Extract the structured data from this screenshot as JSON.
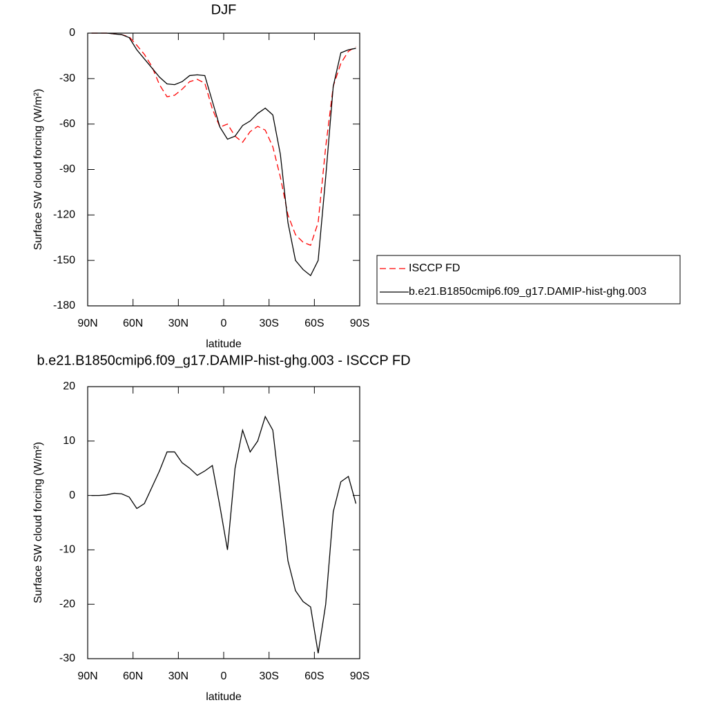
{
  "chart_data": [
    {
      "type": "line",
      "title": "DJF",
      "xlabel": "latitude",
      "ylabel": "Surface SW cloud forcing (W/m²)",
      "x": [
        87.5,
        82.5,
        77.5,
        72.5,
        67.5,
        62.5,
        57.5,
        52.5,
        47.5,
        42.5,
        37.5,
        32.5,
        27.5,
        22.5,
        17.5,
        12.5,
        7.5,
        2.5,
        -2.5,
        -7.5,
        -12.5,
        -17.5,
        -22.5,
        -27.5,
        -32.5,
        -37.5,
        -42.5,
        -47.5,
        -52.5,
        -57.5,
        -62.5,
        -67.5,
        -72.5,
        -77.5,
        -82.5,
        -87.5
      ],
      "series": [
        {
          "name": "ISCCP FD",
          "color": "#ff0000",
          "dashed": true,
          "values": [
            0,
            0,
            0,
            -0.5,
            -1,
            -2.5,
            -8,
            -14,
            -22,
            -34,
            -42,
            -41,
            -37,
            -32,
            -30.5,
            -33,
            -50,
            -62,
            -60,
            -68,
            -72,
            -65,
            -61.5,
            -64,
            -75,
            -95,
            -120,
            -133,
            -138,
            -140,
            -125,
            -75,
            -35,
            -20,
            -12,
            -9
          ]
        },
        {
          "name": "b.e21.B1850cmip6.f09_g17.DAMIP-hist-ghg.003",
          "color": "#000000",
          "dashed": false,
          "values": [
            0,
            0,
            0,
            -0.5,
            -1,
            -3,
            -11,
            -17,
            -23,
            -29,
            -33.5,
            -34,
            -32,
            -28,
            -27.5,
            -28,
            -45,
            -62,
            -70,
            -68,
            -61,
            -58,
            -53,
            -49.5,
            -54,
            -80,
            -125,
            -150,
            -156,
            -160,
            -150,
            -95,
            -35,
            -13,
            -11,
            -10
          ]
        }
      ],
      "xlim": [
        90,
        -90
      ],
      "xticks": [
        {
          "value": 90,
          "label": "90N"
        },
        {
          "value": 60,
          "label": "60N"
        },
        {
          "value": 30,
          "label": "30N"
        },
        0,
        {
          "value": -30,
          "label": "30S"
        },
        {
          "value": -60,
          "label": "60S"
        },
        {
          "value": -90,
          "label": "90S"
        }
      ],
      "ylim": [
        -180,
        0
      ],
      "yticks": [
        0,
        -30,
        -60,
        -90,
        -120,
        -150,
        -180
      ],
      "legend": "right"
    },
    {
      "type": "line",
      "title": "b.e21.B1850cmip6.f09_g17.DAMIP-hist-ghg.003 - ISCCP FD",
      "xlabel": "latitude",
      "ylabel": "Surface SW cloud forcing (W/m²)",
      "x": [
        87.5,
        82.5,
        77.5,
        72.5,
        67.5,
        62.5,
        57.5,
        52.5,
        47.5,
        42.5,
        37.5,
        32.5,
        27.5,
        22.5,
        17.5,
        12.5,
        7.5,
        2.5,
        -2.5,
        -7.5,
        -12.5,
        -17.5,
        -22.5,
        -27.5,
        -32.5,
        -37.5,
        -42.5,
        -47.5,
        -52.5,
        -57.5,
        -62.5,
        -67.5,
        -72.5,
        -77.5,
        -82.5,
        -87.5
      ],
      "series": [
        {
          "color": "#000000",
          "dashed": false,
          "values": [
            0,
            0,
            0.1,
            0.4,
            0.3,
            -0.3,
            -2.4,
            -1.5,
            1.5,
            4.5,
            8,
            8,
            6,
            5,
            3.7,
            4.5,
            5.5,
            -2,
            -10,
            5,
            12,
            8,
            10,
            14.5,
            12,
            0,
            -12,
            -17.5,
            -19.5,
            -20.5,
            -29,
            -20,
            -3,
            2.5,
            3.5,
            -1.5
          ]
        }
      ],
      "xlim": [
        90,
        -90
      ],
      "xticks": [
        {
          "value": 90,
          "label": "90N"
        },
        {
          "value": 60,
          "label": "60N"
        },
        {
          "value": 30,
          "label": "30N"
        },
        0,
        {
          "value": -30,
          "label": "30S"
        },
        {
          "value": -60,
          "label": "60S"
        },
        {
          "value": -90,
          "label": "90S"
        }
      ],
      "ylim": [
        -30,
        20
      ],
      "yticks": [
        20,
        10,
        0,
        -10,
        -20,
        -30
      ]
    }
  ]
}
